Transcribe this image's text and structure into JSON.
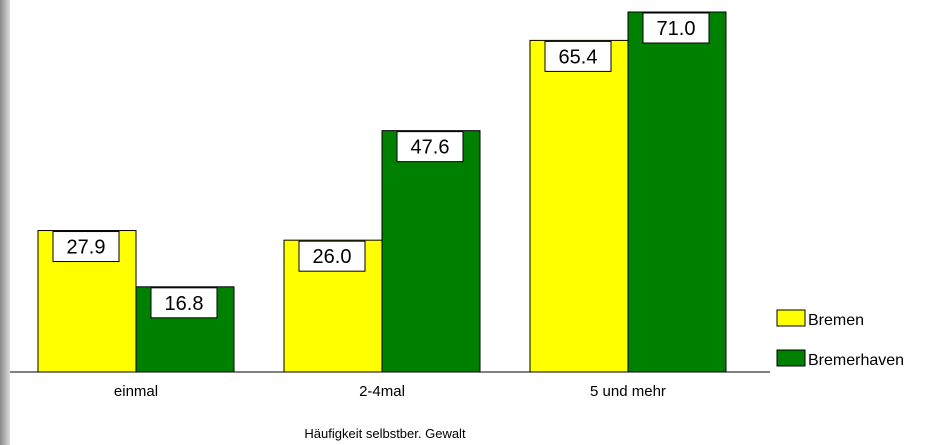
{
  "chart_data": {
    "type": "bar",
    "categories": [
      "einmal",
      "2-4mal",
      "5 und mehr"
    ],
    "series": [
      {
        "name": "Bremen",
        "values": [
          27.9,
          26.0,
          65.4
        ],
        "labels": [
          "27.9",
          "26.0",
          "65.4"
        ],
        "color": "#ffff00"
      },
      {
        "name": "Bremerhaven",
        "values": [
          16.8,
          47.6,
          71.0
        ],
        "labels": [
          "16.8",
          "47.6",
          "71.0"
        ],
        "color": "#008000"
      }
    ],
    "title": "",
    "xlabel": "Häufigkeit selbstber. Gewalt",
    "ylabel": "",
    "ylim": [
      0,
      71.0
    ],
    "grid": false,
    "legend": "right"
  }
}
